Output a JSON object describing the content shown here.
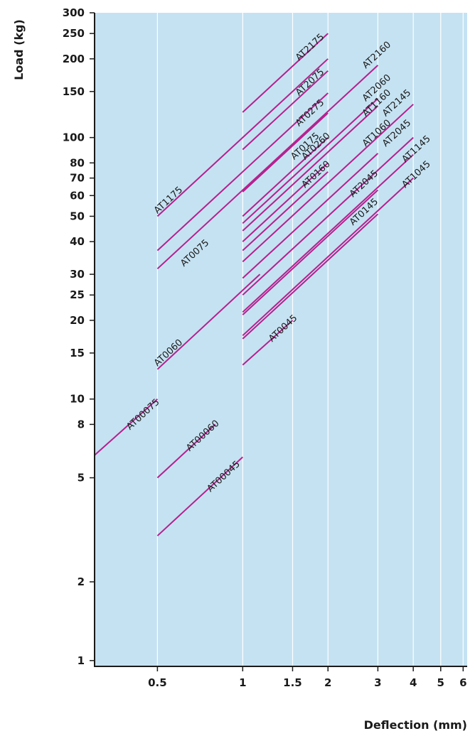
{
  "chart_data": {
    "type": "line",
    "xlabel": "Deflection (mm)",
    "ylabel": "Load (kg)",
    "x_scale": "log",
    "y_scale": "log",
    "xlim": [
      0.3,
      6.2
    ],
    "ylim": [
      0.95,
      300
    ],
    "x_ticks": [
      {
        "value": 0.5,
        "label": "0.5"
      },
      {
        "value": 1,
        "label": "1"
      },
      {
        "value": 1.5,
        "label": "1.5"
      },
      {
        "value": 2,
        "label": "2"
      },
      {
        "value": 3,
        "label": "3"
      },
      {
        "value": 4,
        "label": "4"
      },
      {
        "value": 5,
        "label": "5"
      },
      {
        "value": 6,
        "label": "6"
      }
    ],
    "y_ticks": [
      {
        "value": 1,
        "label": "1"
      },
      {
        "value": 2,
        "label": "2"
      },
      {
        "value": 5,
        "label": "5"
      },
      {
        "value": 8,
        "label": "8"
      },
      {
        "value": 10,
        "label": "10"
      },
      {
        "value": 15,
        "label": "15"
      },
      {
        "value": 20,
        "label": "20"
      },
      {
        "value": 25,
        "label": "25"
      },
      {
        "value": 30,
        "label": "30"
      },
      {
        "value": 40,
        "label": "40"
      },
      {
        "value": 50,
        "label": "50"
      },
      {
        "value": 60,
        "label": "60"
      },
      {
        "value": 70,
        "label": "70"
      },
      {
        "value": 80,
        "label": "80"
      },
      {
        "value": 100,
        "label": "100"
      },
      {
        "value": 150,
        "label": "150"
      },
      {
        "value": 200,
        "label": "200"
      },
      {
        "value": 250,
        "label": "250"
      },
      {
        "value": 300,
        "label": "300"
      }
    ],
    "grid": "vertical lines at x ticks",
    "colors": {
      "background": "#c5e2f2",
      "line": "#b5208f",
      "grid": "#ffffff",
      "axis": "#1a1a1a"
    },
    "series": [
      {
        "name": "AT2175",
        "x": [
          1,
          2
        ],
        "y": [
          125,
          250
        ]
      },
      {
        "name": "AT2075",
        "x": [
          1,
          2
        ],
        "y": [
          90,
          180
        ]
      },
      {
        "name": "AT0275",
        "x": [
          1,
          2
        ],
        "y": [
          62,
          124
        ]
      },
      {
        "name": "AT1175",
        "x": [
          0.5,
          2
        ],
        "y": [
          50,
          200
        ]
      },
      {
        "name": "AT0175",
        "x": [
          1,
          2
        ],
        "y": [
          50,
          100
        ]
      },
      {
        "name": "AT0075",
        "x": [
          0.5,
          2
        ],
        "y": [
          37,
          148
        ]
      },
      {
        "name": "AT2160",
        "x": [
          0.5,
          3
        ],
        "y": [
          31.5,
          189
        ]
      },
      {
        "name": "AT2060",
        "x": [
          1,
          3
        ],
        "y": [
          47,
          141
        ]
      },
      {
        "name": "AT1160",
        "x": [
          1,
          3
        ],
        "y": [
          44,
          132
        ]
      },
      {
        "name": "AT0260",
        "x": [
          1,
          2
        ],
        "y": [
          40,
          80
        ]
      },
      {
        "name": "AT0160",
        "x": [
          1,
          2
        ],
        "y": [
          37,
          74
        ]
      },
      {
        "name": "AT2145",
        "x": [
          1,
          4
        ],
        "y": [
          33.5,
          134
        ]
      },
      {
        "name": "AT1060",
        "x": [
          1,
          3
        ],
        "y": [
          29,
          87
        ]
      },
      {
        "name": "AT2045",
        "x": [
          1,
          4
        ],
        "y": [
          25,
          100
        ]
      },
      {
        "name": "AT1145",
        "x": [
          1,
          4
        ],
        "y": [
          21.5,
          86
        ]
      },
      {
        "name": "AT1045",
        "x": [
          1,
          4
        ],
        "y": [
          17.5,
          70
        ]
      },
      {
        "name": "AT2045",
        "x": [
          1,
          3
        ],
        "y": [
          21,
          63
        ]
      },
      {
        "name": "AT0145",
        "x": [
          1,
          3
        ],
        "y": [
          17,
          51
        ]
      },
      {
        "name": "AT0060",
        "x": [
          0.5,
          1.15
        ],
        "y": [
          13,
          30
        ]
      },
      {
        "name": "AT0045",
        "x": [
          1,
          1.5
        ],
        "y": [
          13.5,
          20
        ]
      },
      {
        "name": "AT00075",
        "x": [
          0.3,
          0.5
        ],
        "y": [
          6.1,
          10
        ]
      },
      {
        "name": "AT00060",
        "x": [
          0.5,
          0.8
        ],
        "y": [
          5,
          8
        ]
      },
      {
        "name": "AT00045",
        "x": [
          0.5,
          1
        ],
        "y": [
          3,
          6
        ]
      }
    ],
    "annotations": [
      {
        "text": "AT2175",
        "x": 1.58,
        "y": 196
      },
      {
        "text": "AT2160",
        "x": 2.72,
        "y": 183
      },
      {
        "text": "AT2075",
        "x": 1.58,
        "y": 144
      },
      {
        "text": "AT2060",
        "x": 2.72,
        "y": 137
      },
      {
        "text": "AT1160",
        "x": 2.72,
        "y": 120
      },
      {
        "text": "AT2145",
        "x": 3.2,
        "y": 120
      },
      {
        "text": "AT0275",
        "x": 1.58,
        "y": 110
      },
      {
        "text": "AT1060",
        "x": 2.72,
        "y": 92
      },
      {
        "text": "AT2045",
        "x": 3.2,
        "y": 92
      },
      {
        "text": "AT0175",
        "x": 1.52,
        "y": 82
      },
      {
        "text": "AT0260",
        "x": 1.66,
        "y": 82
      },
      {
        "text": "AT1145",
        "x": 3.75,
        "y": 80
      },
      {
        "text": "AT1045",
        "x": 3.75,
        "y": 64
      },
      {
        "text": "AT0160",
        "x": 1.66,
        "y": 64
      },
      {
        "text": "AT2045",
        "x": 2.45,
        "y": 59
      },
      {
        "text": "AT0145",
        "x": 2.45,
        "y": 46
      },
      {
        "text": "AT1175",
        "x": 0.5,
        "y": 51
      },
      {
        "text": "AT0075",
        "x": 0.62,
        "y": 32
      },
      {
        "text": "AT0060",
        "x": 0.5,
        "y": 13.3
      },
      {
        "text": "AT0045",
        "x": 1.27,
        "y": 16.5
      },
      {
        "text": "AT00075",
        "x": 0.4,
        "y": 7.6
      },
      {
        "text": "AT00060",
        "x": 0.65,
        "y": 6.3
      },
      {
        "text": "AT00045",
        "x": 0.77,
        "y": 4.4
      }
    ]
  }
}
